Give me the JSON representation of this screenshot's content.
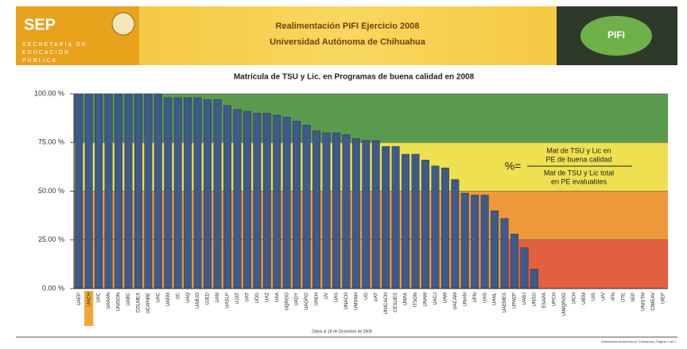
{
  "header": {
    "logo": "SEP",
    "ministry": "SECRETARÍA DE EDUCACIÓN PÚBLICA",
    "line1": "Realimentación PIFI Ejercicio 2008",
    "line2": "Universidad Autónoma de Chihuahua",
    "badge": "PIFI"
  },
  "chart_data": {
    "type": "bar",
    "title": "Matrícula de TSU y Lic. en Programas de buena calidad en 2008",
    "categories": [
      "UAEP",
      "UACH",
      "UAC",
      "UAAAN",
      "UNISON",
      "UABC",
      "COLMEX",
      "UCARIBE",
      "UAC",
      "UAEM",
      "UC",
      "UAQ",
      "UABJO",
      "UJED",
      "UAN",
      "UASLP",
      "UJAT",
      "UAT",
      "UDG",
      "UAZ",
      "UAA",
      "UQROO",
      "UADY",
      "UAGRO",
      "UAEH",
      "UV",
      "UAS",
      "UNACH",
      "UMSNH",
      "UG",
      "UAT",
      "UNICACH",
      "CESUES",
      "UNPA",
      "ITSON",
      "UNAM",
      "UACJ",
      "UAM",
      "UACAM",
      "UNAN",
      "UPN",
      "UAG",
      "UANL",
      "UAEMEX",
      "UPAEP",
      "UABJ",
      "UNSIJ",
      "ESAPA",
      "UPCH",
      "UIMQROO",
      "UICH",
      "UIEM",
      "UIS",
      "UIV",
      "IPN",
      "UTE",
      "SEP",
      "UNISTM",
      "CIMEAV",
      "UIEP"
    ],
    "values": [
      100,
      100,
      100,
      100,
      100,
      100,
      100,
      100,
      100,
      98,
      98,
      98,
      98,
      97,
      97,
      94,
      92,
      91,
      90,
      90,
      89,
      88,
      86,
      84,
      81,
      80,
      80,
      79,
      77,
      76,
      76,
      73,
      73,
      69,
      69,
      66,
      63,
      62,
      56,
      49,
      48,
      48,
      40,
      36,
      28,
      21,
      10,
      0,
      0,
      0,
      0,
      0,
      0,
      0,
      0,
      0,
      0,
      0,
      0,
      0
    ],
    "color": "#3d5a8a",
    "highlight_category": 1,
    "highlight_color": "#f0a838",
    "ylim": [
      0,
      100
    ],
    "yticks": [
      {
        "value": 0,
        "label": "0.00 %"
      },
      {
        "value": 25,
        "label": "25.00 %"
      },
      {
        "value": 50,
        "label": "50.00 %"
      },
      {
        "value": 75,
        "label": "75.00 %"
      },
      {
        "value": 100,
        "label": "100.00 %"
      }
    ],
    "formula": {
      "prefix": "%=",
      "numerator": [
        "Mat de TSU y Lic en",
        "PE de buena calidad"
      ],
      "denominator": [
        "Mat de TSU y Lic total",
        "en PE evaluables"
      ]
    },
    "footnote": "Datos al 18 de Diciembre de 2008"
  },
  "footer": "Universidad Autónoma de Chihuahua | Página 1 de 1"
}
